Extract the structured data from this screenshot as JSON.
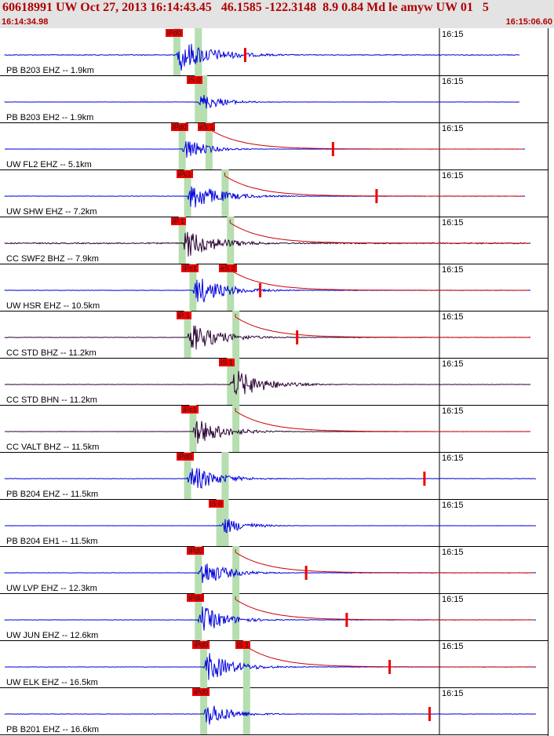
{
  "header": {
    "title": "60618991 UW Oct 27, 2013 16:14:43.45   46.1585 -122.3148  8.9 0.84 Md le amyw UW 01   5",
    "start_time": "16:14:34.98",
    "end_time": "16:15:06.60",
    "text_color": "#b00000"
  },
  "minute_mark": "16:15",
  "colors": {
    "blue": "#0000dd",
    "dark": "#2a0033",
    "pick": "#ee0000",
    "band": "#b6deb0",
    "coda": "#cc0000"
  },
  "traces": [
    {
      "label": "PB B203 EHZ -- 1.9km",
      "color": "blue",
      "picks": [
        "iPd0"
      ],
      "p_frac": 0.32,
      "s_frac": 0.36,
      "end_frac": 0.96,
      "amp": 0.9,
      "tail": 0.6,
      "noise": 0.12,
      "coda": false,
      "mark": true
    },
    {
      "label": "PB B203 EH2 -- 1.9km",
      "color": "blue",
      "picks": [
        "iS 0"
      ],
      "p_frac": 0.36,
      "s_frac": 0.37,
      "end_frac": 0.96,
      "amp": 0.55,
      "tail": 0.25,
      "noise": 0.02,
      "coda": false,
      "mark": false
    },
    {
      "label": "UW FL2 EHZ -- 5.1km",
      "color": "blue",
      "picks": [
        "iPd0",
        "eS 1"
      ],
      "p_frac": 0.33,
      "s_frac": 0.38,
      "end_frac": 0.97,
      "amp": 0.7,
      "tail": 0.2,
      "noise": 0.02,
      "coda": true,
      "mark": true
    },
    {
      "label": "UW SHW EHZ -- 7.2km",
      "color": "blue",
      "picks": [
        "iPc1"
      ],
      "p_frac": 0.34,
      "s_frac": 0.41,
      "end_frac": 0.97,
      "amp": 0.85,
      "tail": 0.5,
      "noise": 0.05,
      "coda": true,
      "mark": true
    },
    {
      "label": "CC SWF2 BHZ -- 7.9km",
      "color": "dark",
      "picks": [
        "iP 1"
      ],
      "p_frac": 0.33,
      "s_frac": 0.42,
      "end_frac": 0.98,
      "amp": 0.85,
      "tail": 0.55,
      "noise": 0.18,
      "coda": true,
      "mark": false
    },
    {
      "label": "UW HSR EHZ -- 10.5km",
      "color": "blue",
      "picks": [
        "iPc1",
        "eS 2"
      ],
      "p_frac": 0.35,
      "s_frac": 0.42,
      "end_frac": 0.98,
      "amp": 0.85,
      "tail": 0.5,
      "noise": 0.05,
      "coda": true,
      "mark": true
    },
    {
      "label": "CC STD BHZ -- 11.2km",
      "color": "dark",
      "picks": [
        "iP 1"
      ],
      "p_frac": 0.34,
      "s_frac": 0.43,
      "end_frac": 0.98,
      "amp": 0.85,
      "tail": 0.5,
      "noise": 0.05,
      "coda": true,
      "mark": true
    },
    {
      "label": "CC STD BHN -- 11.2km",
      "color": "dark",
      "picks": [
        "iS 1"
      ],
      "p_frac": 0.42,
      "s_frac": 0.43,
      "end_frac": 0.98,
      "amp": 0.9,
      "tail": 0.5,
      "noise": 0.05,
      "coda": false,
      "mark": false
    },
    {
      "label": "CC VALT BHZ -- 11.5km",
      "color": "dark",
      "picks": [
        "iPc1"
      ],
      "p_frac": 0.35,
      "s_frac": 0.43,
      "end_frac": 0.98,
      "amp": 0.8,
      "tail": 0.45,
      "noise": 0.02,
      "coda": true,
      "mark": false
    },
    {
      "label": "PB B204 EHZ -- 11.5km",
      "color": "blue",
      "picks": [
        "iPd0"
      ],
      "p_frac": 0.34,
      "s_frac": 0.41,
      "end_frac": 0.99,
      "amp": 0.85,
      "tail": 0.4,
      "noise": 0.05,
      "coda": false,
      "mark": true
    },
    {
      "label": "PB B204 EH1 -- 11.5km",
      "color": "blue",
      "picks": [
        "iS 0"
      ],
      "p_frac": 0.4,
      "s_frac": 0.41,
      "end_frac": 0.99,
      "amp": 0.55,
      "tail": 0.25,
      "noise": 0.02,
      "coda": false,
      "mark": false
    },
    {
      "label": "UW LVP EHZ -- 12.3km",
      "color": "blue",
      "picks": [
        "iPd0"
      ],
      "p_frac": 0.36,
      "s_frac": 0.43,
      "end_frac": 0.99,
      "amp": 0.85,
      "tail": 0.35,
      "noise": 0.05,
      "coda": true,
      "mark": true
    },
    {
      "label": "UW JUN EHZ -- 12.6km",
      "color": "blue",
      "picks": [
        "iPd0"
      ],
      "p_frac": 0.36,
      "s_frac": 0.43,
      "end_frac": 0.99,
      "amp": 0.85,
      "tail": 0.35,
      "noise": 0.05,
      "coda": true,
      "mark": true
    },
    {
      "label": "UW ELK EHZ -- 16.5km",
      "color": "blue",
      "picks": [
        "iPd0",
        "iS 1"
      ],
      "p_frac": 0.37,
      "s_frac": 0.45,
      "end_frac": 0.99,
      "amp": 0.9,
      "tail": 0.4,
      "noise": 0.05,
      "coda": true,
      "mark": true
    },
    {
      "label": "PB B201 EHZ -- 16.6km",
      "color": "blue",
      "picks": [
        "iPd0"
      ],
      "p_frac": 0.37,
      "s_frac": 0.45,
      "end_frac": 0.99,
      "amp": 0.8,
      "tail": 0.3,
      "noise": 0.05,
      "coda": false,
      "mark": true
    }
  ]
}
